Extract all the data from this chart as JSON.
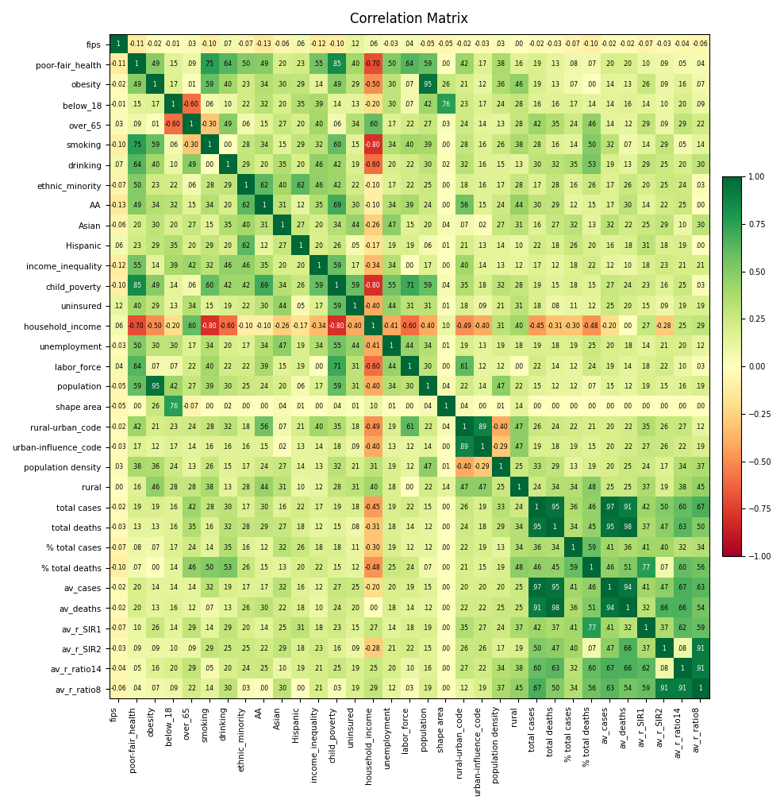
{
  "labels": [
    "fips",
    "poor-fair_health",
    "obesity",
    "below_18",
    "over_65",
    "smoking",
    "drinking",
    "ethnic_minority",
    "AA",
    "Asian",
    "Hispanic",
    "income_inequality",
    "child_poverty",
    "uninsured",
    "household_income",
    "unemployment",
    "labor_force",
    "population",
    "shape area",
    "rural-urban_code",
    "urban-influence_code",
    "population density",
    "rural",
    "total cases",
    "total deaths",
    "% total cases",
    "% total deaths",
    "av_cases",
    "av_deaths",
    "av_r_SIR1",
    "av_r_SIR2",
    "av_r_ratio14",
    "av_r_ratio8"
  ],
  "matrix": [
    [
      1.0,
      -0.11,
      -0.02,
      -0.01,
      0.03,
      -0.1,
      0.07,
      -0.07,
      -0.13,
      -0.06,
      0.06,
      -0.12,
      -0.1,
      0.12,
      0.06,
      -0.03,
      0.04,
      -0.05,
      -0.05,
      -0.02,
      -0.03,
      0.03,
      0.0,
      -0.02,
      -0.03,
      -0.07,
      -0.1,
      -0.02,
      -0.02,
      -0.07,
      -0.03,
      -0.04,
      -0.06
    ],
    [
      -0.11,
      1.0,
      0.49,
      0.15,
      0.09,
      0.75,
      0.64,
      0.5,
      0.49,
      0.2,
      0.23,
      0.55,
      0.85,
      0.4,
      -0.7,
      0.5,
      0.64,
      0.59,
      0.0,
      0.42,
      0.17,
      0.38,
      0.16,
      0.19,
      0.13,
      0.08,
      0.07,
      0.2,
      0.2,
      0.1,
      0.09,
      0.05,
      0.04
    ],
    [
      -0.02,
      0.49,
      1.0,
      0.17,
      0.01,
      0.59,
      0.4,
      0.23,
      0.34,
      0.3,
      0.29,
      0.14,
      0.49,
      0.29,
      -0.5,
      0.3,
      0.07,
      0.95,
      0.26,
      0.21,
      0.12,
      0.36,
      0.46,
      0.19,
      0.13,
      0.07,
      0.0,
      0.14,
      0.13,
      0.26,
      0.09,
      0.16,
      0.07
    ],
    [
      -0.01,
      0.15,
      0.17,
      1.0,
      -0.6,
      0.06,
      0.1,
      0.22,
      0.32,
      0.2,
      0.35,
      0.39,
      0.14,
      0.13,
      -0.2,
      0.3,
      0.07,
      0.42,
      0.76,
      0.23,
      0.17,
      0.24,
      0.28,
      0.16,
      0.16,
      0.17,
      0.14,
      0.14,
      0.16,
      0.14,
      0.1,
      0.2,
      0.09
    ],
    [
      0.03,
      0.09,
      0.01,
      -0.6,
      1.0,
      -0.3,
      0.49,
      0.06,
      0.15,
      0.27,
      0.2,
      0.4,
      0.06,
      0.34,
      0.6,
      0.17,
      0.22,
      0.27,
      0.03,
      0.24,
      0.14,
      0.13,
      0.28,
      0.42,
      0.35,
      0.24,
      0.46,
      0.14,
      0.12,
      0.29,
      0.09,
      0.29,
      0.22
    ],
    [
      -0.1,
      0.75,
      0.59,
      0.06,
      -0.3,
      1.0,
      0.0,
      0.28,
      0.34,
      0.15,
      0.29,
      0.32,
      0.6,
      0.15,
      -0.8,
      0.34,
      0.4,
      0.39,
      0.0,
      0.28,
      0.16,
      0.26,
      0.38,
      0.28,
      0.16,
      0.14,
      0.5,
      0.32,
      0.07,
      0.14,
      0.29,
      0.05,
      0.14
    ],
    [
      0.07,
      0.64,
      0.4,
      0.1,
      0.49,
      0.0,
      1.0,
      0.29,
      0.2,
      0.35,
      0.2,
      0.46,
      0.42,
      0.19,
      -0.6,
      0.2,
      0.22,
      0.3,
      0.02,
      0.32,
      0.16,
      0.15,
      0.13,
      0.3,
      0.32,
      0.35,
      0.53,
      0.19,
      0.13,
      0.29,
      0.25,
      0.2,
      0.3
    ],
    [
      -0.07,
      0.5,
      0.23,
      0.22,
      0.06,
      0.28,
      0.29,
      1.0,
      0.62,
      0.4,
      0.62,
      0.46,
      0.42,
      0.22,
      -0.1,
      0.17,
      0.22,
      0.25,
      0.0,
      0.18,
      0.16,
      0.17,
      0.28,
      0.17,
      0.28,
      0.16,
      0.26,
      0.17,
      0.26,
      0.2,
      0.25,
      0.24,
      0.03
    ],
    [
      -0.13,
      0.49,
      0.34,
      0.32,
      0.15,
      0.34,
      0.2,
      0.62,
      1.0,
      0.31,
      0.12,
      0.35,
      0.69,
      0.3,
      -0.1,
      0.34,
      0.39,
      0.24,
      0.0,
      0.56,
      0.15,
      0.24,
      0.44,
      0.3,
      0.29,
      0.12,
      0.15,
      0.17,
      0.3,
      0.14,
      0.22,
      0.25,
      0.0
    ],
    [
      -0.06,
      0.2,
      0.3,
      0.2,
      0.27,
      0.15,
      0.35,
      0.4,
      0.31,
      1.0,
      0.27,
      0.2,
      0.34,
      0.44,
      -0.26,
      0.47,
      0.15,
      0.2,
      0.04,
      0.07,
      0.02,
      0.27,
      0.31,
      0.16,
      0.27,
      0.32,
      0.13,
      0.32,
      0.22,
      0.25,
      0.29,
      0.1,
      0.3
    ],
    [
      0.06,
      0.23,
      0.29,
      0.35,
      0.2,
      0.29,
      0.2,
      0.62,
      0.12,
      0.27,
      1.0,
      0.2,
      0.26,
      0.05,
      -0.17,
      0.19,
      0.19,
      0.06,
      0.01,
      0.21,
      0.13,
      0.14,
      0.1,
      0.22,
      0.18,
      0.26,
      0.2,
      0.16,
      0.18,
      0.31,
      0.18,
      0.19,
      0.0
    ],
    [
      -0.12,
      0.55,
      0.14,
      0.39,
      0.42,
      0.32,
      0.46,
      0.46,
      0.35,
      0.2,
      0.2,
      1.0,
      0.59,
      0.17,
      -0.34,
      0.34,
      0.0,
      0.17,
      0.0,
      0.4,
      0.14,
      0.13,
      0.12,
      0.17,
      0.12,
      0.18,
      0.22,
      0.12,
      0.1,
      0.18,
      0.23,
      0.21,
      0.21
    ],
    [
      -0.1,
      0.85,
      0.49,
      0.14,
      0.06,
      0.6,
      0.42,
      0.42,
      0.69,
      0.34,
      0.26,
      0.59,
      1.0,
      0.59,
      -0.8,
      0.55,
      0.71,
      0.59,
      0.04,
      0.35,
      0.18,
      0.32,
      0.28,
      0.19,
      0.15,
      0.18,
      0.15,
      0.27,
      0.24,
      0.23,
      0.16,
      0.25,
      0.03
    ],
    [
      0.12,
      0.4,
      0.29,
      0.13,
      0.34,
      0.15,
      0.19,
      0.22,
      0.3,
      0.44,
      0.05,
      0.17,
      0.59,
      1.0,
      -0.4,
      0.44,
      0.31,
      0.31,
      0.01,
      0.18,
      0.09,
      0.21,
      0.31,
      0.18,
      0.08,
      0.11,
      0.12,
      0.25,
      0.2,
      0.15,
      0.09,
      0.19,
      0.19
    ],
    [
      0.06,
      -0.7,
      -0.5,
      -0.2,
      0.6,
      -0.8,
      -0.6,
      -0.1,
      -0.1,
      -0.26,
      -0.17,
      -0.34,
      -0.8,
      -0.4,
      1.0,
      -0.41,
      -0.6,
      -0.4,
      0.1,
      -0.49,
      -0.4,
      0.31,
      0.4,
      -0.45,
      -0.31,
      -0.3,
      -0.48,
      -0.2,
      0.0,
      0.27,
      -0.28,
      0.25,
      0.29
    ],
    [
      -0.03,
      0.5,
      0.3,
      0.3,
      0.17,
      0.34,
      0.2,
      0.17,
      0.34,
      0.47,
      0.19,
      0.34,
      0.55,
      0.44,
      -0.41,
      1.0,
      0.44,
      0.34,
      0.01,
      0.19,
      0.13,
      0.19,
      0.18,
      0.19,
      0.18,
      0.19,
      0.25,
      0.2,
      0.18,
      0.14,
      0.21,
      0.2,
      0.12
    ],
    [
      0.04,
      0.64,
      0.07,
      0.07,
      0.22,
      0.4,
      0.22,
      0.22,
      0.39,
      0.15,
      0.19,
      0.0,
      0.71,
      0.31,
      -0.6,
      0.44,
      1.0,
      0.3,
      0.0,
      0.61,
      0.12,
      0.12,
      0.0,
      0.22,
      0.14,
      0.12,
      0.24,
      0.19,
      0.14,
      0.18,
      0.22,
      0.1,
      0.03
    ],
    [
      -0.05,
      0.59,
      0.95,
      0.42,
      0.27,
      0.39,
      0.3,
      0.25,
      0.24,
      0.2,
      0.06,
      0.17,
      0.59,
      0.31,
      -0.4,
      0.34,
      0.3,
      1.0,
      0.04,
      0.22,
      0.14,
      0.47,
      0.22,
      0.15,
      0.12,
      0.12,
      0.07,
      0.15,
      0.12,
      0.19,
      0.15,
      0.16,
      0.19
    ],
    [
      -0.05,
      0.0,
      0.26,
      0.76,
      -0.07,
      0.0,
      0.02,
      0.0,
      0.0,
      0.04,
      0.01,
      0.0,
      0.04,
      0.01,
      0.1,
      0.01,
      0.0,
      0.04,
      1.0,
      0.04,
      0.0,
      0.007,
      0.14,
      0.0,
      0.0,
      0.0,
      0.0,
      0.0,
      0.0,
      0.0,
      0.0,
      0.0,
      0.0
    ],
    [
      -0.02,
      0.42,
      0.21,
      0.23,
      0.24,
      0.28,
      0.32,
      0.18,
      0.56,
      0.07,
      0.21,
      0.4,
      0.35,
      0.18,
      -0.49,
      0.19,
      0.61,
      0.22,
      0.04,
      1.0,
      0.89,
      -0.4,
      0.47,
      0.26,
      0.24,
      0.22,
      0.21,
      0.2,
      0.22,
      0.35,
      0.26,
      0.27,
      0.12
    ],
    [
      -0.03,
      0.17,
      0.12,
      0.17,
      0.14,
      0.16,
      0.16,
      0.16,
      0.15,
      0.02,
      0.13,
      0.14,
      0.18,
      0.09,
      -0.4,
      0.13,
      0.12,
      0.14,
      0.0,
      0.89,
      1.0,
      -0.29,
      0.47,
      0.19,
      0.18,
      0.19,
      0.15,
      0.2,
      0.22,
      0.27,
      0.26,
      0.22,
      0.19
    ],
    [
      0.03,
      0.38,
      0.36,
      0.24,
      0.13,
      0.26,
      0.15,
      0.17,
      0.24,
      0.27,
      0.14,
      0.13,
      0.32,
      0.21,
      0.31,
      0.19,
      0.12,
      0.47,
      0.007,
      -0.4,
      -0.29,
      1.0,
      0.25,
      0.33,
      0.29,
      0.13,
      0.19,
      0.2,
      0.25,
      0.24,
      0.17,
      0.34,
      0.37
    ],
    [
      0.0,
      0.16,
      0.46,
      0.28,
      0.28,
      0.38,
      0.13,
      0.28,
      0.44,
      0.31,
      0.1,
      0.12,
      0.28,
      0.31,
      0.4,
      0.18,
      0.0,
      0.22,
      0.14,
      0.47,
      0.47,
      0.25,
      1.0,
      0.24,
      0.34,
      0.34,
      0.48,
      0.25,
      0.25,
      0.37,
      0.19,
      0.38,
      0.45
    ],
    [
      -0.02,
      0.19,
      0.19,
      0.16,
      0.42,
      0.28,
      0.3,
      0.17,
      0.3,
      0.16,
      0.22,
      0.17,
      0.19,
      0.18,
      -0.45,
      0.19,
      0.22,
      0.15,
      0.0,
      0.26,
      0.19,
      0.33,
      0.24,
      1.0,
      0.95,
      0.36,
      0.46,
      0.97,
      0.91,
      0.42,
      0.5,
      0.6,
      0.67
    ],
    [
      -0.03,
      0.13,
      0.13,
      0.16,
      0.35,
      0.16,
      0.32,
      0.28,
      0.29,
      0.27,
      0.18,
      0.12,
      0.15,
      0.08,
      -0.31,
      0.18,
      0.14,
      0.12,
      0.0,
      0.24,
      0.18,
      0.29,
      0.34,
      0.95,
      1.0,
      0.34,
      0.45,
      0.95,
      0.98,
      0.37,
      0.47,
      0.63,
      0.5
    ],
    [
      -0.07,
      0.08,
      0.07,
      0.17,
      0.24,
      0.14,
      0.35,
      0.16,
      0.12,
      0.32,
      0.26,
      0.18,
      0.18,
      0.11,
      -0.3,
      0.19,
      0.12,
      0.12,
      0.0,
      0.22,
      0.19,
      0.13,
      0.34,
      0.36,
      0.34,
      1.0,
      0.59,
      0.41,
      0.36,
      0.41,
      0.4,
      0.32,
      0.34
    ],
    [
      -0.1,
      0.07,
      0.0,
      0.14,
      0.46,
      0.5,
      0.53,
      0.26,
      0.15,
      0.13,
      0.2,
      0.22,
      0.15,
      0.12,
      -0.48,
      0.25,
      0.24,
      0.07,
      0.0,
      0.21,
      0.15,
      0.19,
      0.48,
      0.46,
      0.45,
      0.59,
      1.0,
      0.46,
      0.51,
      0.77,
      0.07,
      0.6,
      0.56
    ],
    [
      -0.02,
      0.2,
      0.14,
      0.14,
      0.14,
      0.32,
      0.19,
      0.17,
      0.17,
      0.32,
      0.16,
      0.12,
      0.27,
      0.25,
      -0.2,
      0.2,
      0.19,
      0.15,
      0.0,
      0.2,
      0.2,
      0.2,
      0.25,
      0.97,
      0.95,
      0.41,
      0.46,
      1.0,
      0.94,
      0.41,
      0.47,
      0.67,
      0.63
    ],
    [
      -0.02,
      0.2,
      0.13,
      0.16,
      0.12,
      0.07,
      0.13,
      0.26,
      0.3,
      0.22,
      0.18,
      0.1,
      0.24,
      0.2,
      0.0,
      0.18,
      0.14,
      0.12,
      0.0,
      0.22,
      0.22,
      0.25,
      0.25,
      0.91,
      0.98,
      0.36,
      0.51,
      0.94,
      1.0,
      0.32,
      0.66,
      0.66,
      0.54
    ],
    [
      -0.07,
      0.1,
      0.26,
      0.14,
      0.29,
      0.14,
      0.29,
      0.2,
      0.14,
      0.25,
      0.31,
      0.18,
      0.23,
      0.15,
      0.27,
      0.14,
      0.18,
      0.19,
      0.0,
      0.35,
      0.27,
      0.24,
      0.37,
      0.42,
      0.37,
      0.41,
      0.77,
      0.41,
      0.32,
      1.0,
      0.37,
      0.62,
      0.59
    ],
    [
      -0.03,
      0.09,
      0.09,
      0.1,
      0.09,
      0.29,
      0.25,
      0.25,
      0.22,
      0.29,
      0.18,
      0.23,
      0.16,
      0.09,
      -0.28,
      0.21,
      0.22,
      0.15,
      0.0,
      0.26,
      0.26,
      0.17,
      0.19,
      0.5,
      0.47,
      0.4,
      0.07,
      0.47,
      0.66,
      0.37,
      1.0,
      0.08,
      0.91
    ],
    [
      -0.04,
      0.05,
      0.16,
      0.2,
      0.29,
      0.05,
      0.2,
      0.24,
      0.25,
      0.1,
      0.19,
      0.21,
      0.25,
      0.19,
      0.25,
      0.2,
      0.1,
      0.16,
      0.0,
      0.27,
      0.22,
      0.34,
      0.38,
      0.6,
      0.63,
      0.32,
      0.6,
      0.67,
      0.66,
      0.62,
      0.08,
      1.0,
      0.91
    ],
    [
      -0.06,
      0.04,
      0.07,
      0.09,
      0.22,
      0.14,
      0.3,
      0.03,
      0.0,
      0.3,
      0.0,
      0.21,
      0.03,
      0.19,
      0.29,
      0.12,
      0.03,
      0.19,
      0.0,
      0.12,
      0.19,
      0.37,
      0.45,
      0.67,
      0.5,
      0.34,
      0.56,
      0.63,
      0.54,
      0.59,
      0.91,
      0.91,
      1.0
    ]
  ],
  "vmin": -1.0,
  "vmax": 1.0,
  "colormap": "RdYlGn",
  "title": "Correlation Matrix",
  "figsize": [
    9.88,
    10.17
  ],
  "dpi": 100,
  "annot_fontsize": 5.5,
  "label_fontsize": 7.5
}
